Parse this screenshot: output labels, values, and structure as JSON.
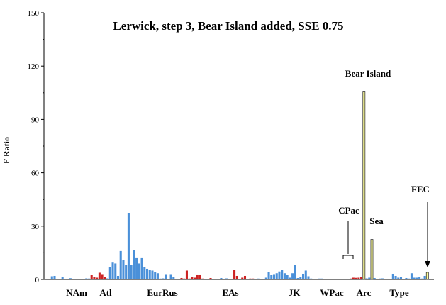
{
  "chart_data": {
    "type": "bar",
    "title": "Lerwick, step 3, Bear Island added, SSE 0.75",
    "ylabel": "F Ratio",
    "xlabel": "",
    "ylim": [
      0,
      150
    ],
    "yticks": [
      0,
      30,
      60,
      90,
      120,
      150
    ],
    "grid": false,
    "legend": "none",
    "colors": {
      "blue": "#4a90d9",
      "red": "#cc2222",
      "yellow": "#ffff99",
      "axis": "#000000"
    },
    "region_labels": [
      "NAm",
      "Atl",
      "EurRus",
      "EAs",
      "JK",
      "WPac",
      "Arc",
      "Type"
    ],
    "annotations": {
      "bear_island": "Bear Island",
      "cpac": "CPac",
      "sea": "Sea",
      "fec": "FEC"
    },
    "series": [
      {
        "values": [
          0.3,
          1.8,
          2.0,
          0.2,
          0.4,
          1.6,
          0.2,
          0.2,
          0.7,
          0.2,
          0.4,
          0.2,
          0.2,
          0.4,
          0.6,
          0.5,
          2.5,
          1.2,
          1.0,
          3.8,
          3.0,
          1.2,
          0.6,
          7.0,
          9.5,
          9.0,
          2.0,
          16.0,
          11.0,
          8.0,
          37.5,
          8.0,
          16.5,
          12.0,
          9.0,
          12.0,
          7.0,
          6.0,
          5.5,
          5.0,
          4.0,
          3.5,
          0.5,
          0.6,
          3.0,
          0.4,
          3.0,
          1.2,
          0.3,
          0.3,
          0.8,
          0.5,
          5.0,
          0.5,
          1.2,
          1.0,
          2.8,
          2.8,
          0.5,
          0.2,
          0.3,
          0.8,
          0.2,
          0.4,
          0.3,
          0.8,
          0.2,
          0.6,
          0.2,
          0.2,
          5.5,
          2.0,
          0.4,
          1.0,
          2.0,
          0.4,
          0.5,
          0.5,
          0.3,
          0.5,
          0.3,
          0.4,
          1.0,
          4.0,
          2.5,
          3.0,
          3.5,
          4.5,
          5.5,
          3.5,
          2.5,
          1.0,
          3.5,
          8.0,
          0.8,
          1.5,
          3.2,
          5.0,
          1.8,
          0.5,
          0.3,
          0.3,
          0.5,
          0.5,
          0.3,
          0.2,
          0.3,
          0.2,
          0.2,
          0.2,
          0.3,
          0.2,
          0.2,
          0.3,
          0.5,
          1.0,
          0.9,
          1.0,
          1.5,
          105.5,
          0.6,
          1.0,
          22.5,
          0.8,
          0.4,
          0.5,
          0.6,
          0.3,
          0.3,
          0.2,
          3.2,
          2.0,
          1.0,
          1.5,
          0.3,
          0.8,
          0.5,
          3.5,
          1.0,
          1.0,
          1.5,
          0.5,
          2.0,
          4.0
        ],
        "colors": [
          "b",
          "b",
          "b",
          "b",
          "b",
          "b",
          "b",
          "b",
          "b",
          "b",
          "b",
          "b",
          "b",
          "b",
          "b",
          "b",
          "r",
          "r",
          "r",
          "r",
          "r",
          "r",
          "b",
          "b",
          "b",
          "b",
          "b",
          "b",
          "b",
          "b",
          "b",
          "b",
          "b",
          "b",
          "b",
          "b",
          "b",
          "b",
          "b",
          "b",
          "b",
          "b",
          "b",
          "b",
          "b",
          "b",
          "b",
          "b",
          "b",
          "b",
          "r",
          "r",
          "r",
          "r",
          "r",
          "r",
          "r",
          "r",
          "r",
          "r",
          "r",
          "r",
          "b",
          "b",
          "b",
          "b",
          "b",
          "b",
          "b",
          "r",
          "r",
          "r",
          "r",
          "r",
          "r",
          "r",
          "r",
          "r",
          "b",
          "b",
          "b",
          "b",
          "b",
          "b",
          "b",
          "b",
          "b",
          "b",
          "b",
          "b",
          "b",
          "b",
          "b",
          "b",
          "b",
          "b",
          "b",
          "b",
          "b",
          "b",
          "b",
          "b",
          "b",
          "b",
          "b",
          "b",
          "b",
          "b",
          "b",
          "b",
          "b",
          "b",
          "b",
          "r",
          "r",
          "r",
          "r",
          "r",
          "r",
          "y",
          "b",
          "b",
          "y",
          "b",
          "b",
          "b",
          "b",
          "b",
          "b",
          "b",
          "b",
          "b",
          "b",
          "b",
          "b",
          "b",
          "b",
          "b",
          "b",
          "b",
          "b",
          "b",
          "b",
          "y"
        ]
      }
    ]
  }
}
